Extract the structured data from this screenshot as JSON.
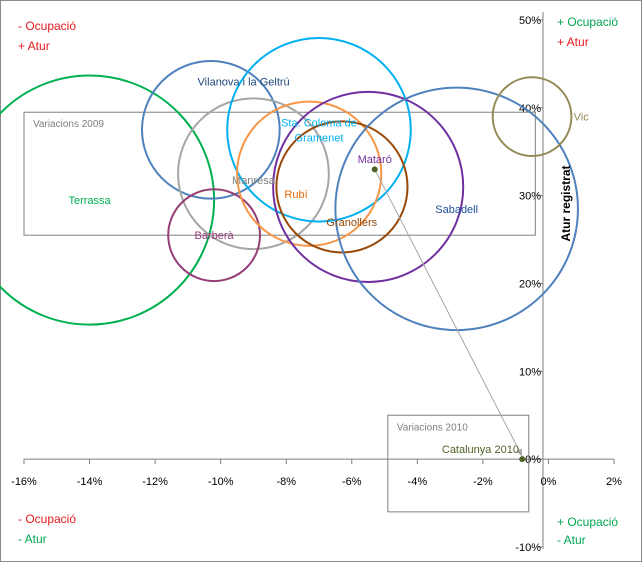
{
  "chart_data": {
    "type": "bubble",
    "x_axis": {
      "min": -16,
      "max": 2,
      "step": 2,
      "tick_labels": [
        "-16%",
        "-14%",
        "-12%",
        "-10%",
        "-8%",
        "-6%",
        "-4%",
        "-2%",
        "0%",
        "2%"
      ]
    },
    "y_axis": {
      "min": -10,
      "max": 50,
      "step": 10,
      "label": "Atur registrat",
      "position": "right",
      "tick_labels": [
        "-10%",
        "0%",
        "10%",
        "20%",
        "30%",
        "40%",
        "50%"
      ]
    },
    "bubbles": [
      {
        "name": "Terrassa",
        "x": -14.0,
        "y": 29.5,
        "r": 3.8,
        "color": "#00b050",
        "label_color": "#00b050",
        "label_dx": 0.0,
        "label_dy": 0.0
      },
      {
        "name": "Vilanova i la Geltrú",
        "x": -10.3,
        "y": 37.5,
        "r": 2.1,
        "color": "#4f81bd",
        "label_color": "#1f497d",
        "label_dx": 1.0,
        "label_dy": 5.5
      },
      {
        "name": "Manresa",
        "x": -9.0,
        "y": 32.5,
        "r": 2.3,
        "color": "#a6a6a6",
        "label_color": "#7f7f7f",
        "label_dx": 0.0,
        "label_dy": -0.7
      },
      {
        "name": "Barberà",
        "x": -10.2,
        "y": 25.5,
        "r": 1.4,
        "color": "#953e76",
        "label_color": "#953e76",
        "label_dx": 0.0,
        "label_dy": 0.0
      },
      {
        "name": "Sta. Coloma de Gramenet",
        "x": -7.0,
        "y": 37.5,
        "r": 2.8,
        "color": "#00b0f0",
        "label_color": "#00b0f0",
        "label_dx": 0.0,
        "label_dy": 0.0
      },
      {
        "name": "Rubí",
        "x": -7.3,
        "y": 32.5,
        "r": 2.2,
        "color": "#f79646",
        "label_color": "#e46c0a",
        "label_dx": -0.4,
        "label_dy": -2.3
      },
      {
        "name": "Granollers",
        "x": -6.3,
        "y": 31.0,
        "r": 2.0,
        "color": "#984807",
        "label_color": "#984807",
        "label_dx": 0.3,
        "label_dy": -4.0
      },
      {
        "name": "Mataró",
        "x": -5.5,
        "y": 31.0,
        "r": 2.9,
        "color": "#7030a0",
        "label_color": "#7030a0",
        "label_dx": 0.2,
        "label_dy": 3.2
      },
      {
        "name": "Sabadell",
        "x": -2.8,
        "y": 28.5,
        "r": 3.7,
        "color": "#4f81bd",
        "label_color": "#1f4e9e",
        "label_dx": 0.0,
        "label_dy": 0.0
      },
      {
        "name": "Vic",
        "x": -0.5,
        "y": 39.0,
        "r": 1.2,
        "color": "#948a54",
        "label_color": "#948a54",
        "label_dx": 1.5,
        "label_dy": 0.0
      }
    ],
    "points": [
      {
        "name": "Catalunya 2009",
        "x": -5.3,
        "y": 33.0,
        "color": "#4f6228"
      },
      {
        "name": "Catalunya 2010",
        "x": -0.8,
        "y": 0.0,
        "color": "#4f6228"
      }
    ],
    "point_labels": [
      {
        "text": "Catalunya 2010",
        "x": -0.9,
        "y": 0.7,
        "color": "#4f6228"
      }
    ],
    "boxes": [
      {
        "title": "Variacions 2009",
        "x1": -16.0,
        "x2": -0.4,
        "y1": 25.5,
        "y2": 39.5
      },
      {
        "title": "Variacions 2010",
        "x1": -4.9,
        "x2": -0.6,
        "y1": -6.0,
        "y2": 5.0
      }
    ],
    "arrow": {
      "from": [
        -5.3,
        33.0
      ],
      "to": [
        -0.8,
        0.3
      ]
    },
    "colors": {
      "red": "#e31a1c",
      "green": "#00a651",
      "axis": "#7f7f7f"
    }
  },
  "quadrants": {
    "top_left": [
      "- Ocupació",
      "+ Atur"
    ],
    "top_right": [
      "+ Ocupació",
      "+ Atur"
    ],
    "bottom_left": [
      "- Ocupació",
      "- Atur"
    ],
    "bottom_right": [
      "+ Ocupació",
      "- Atur"
    ]
  }
}
